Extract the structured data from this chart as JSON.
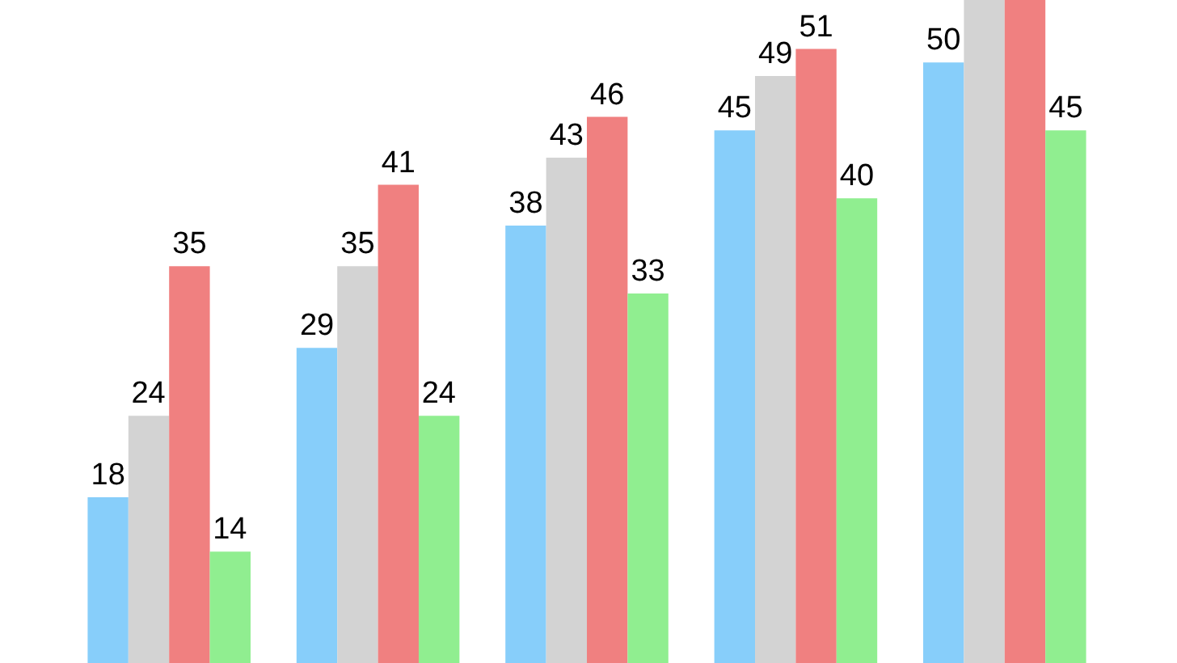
{
  "chart_data": {
    "type": "bar",
    "categories": [
      null,
      null,
      null,
      null,
      null
    ],
    "series": [
      {
        "color": "#87cefa",
        "values": [
          18,
          29,
          38,
          45,
          50
        ],
        "value_labels": [
          "18",
          "29",
          "38",
          "45",
          "50"
        ]
      },
      {
        "color": "#d3d3d3",
        "values": [
          24,
          35,
          43,
          49,
          54.6
        ],
        "value_labels": [
          "24",
          "35",
          "43",
          "49",
          null
        ]
      },
      {
        "color": "#f08080",
        "values": [
          35,
          41,
          46,
          51,
          54.6
        ],
        "value_labels": [
          "35",
          "41",
          "46",
          "51",
          null
        ]
      },
      {
        "color": "#90ee90",
        "values": [
          14,
          24,
          33,
          40,
          45
        ],
        "value_labels": [
          "14",
          "24",
          "33",
          "40",
          "45"
        ]
      }
    ],
    "ylim": [
      5.8,
      54.6
    ],
    "tick_labels": false
  }
}
